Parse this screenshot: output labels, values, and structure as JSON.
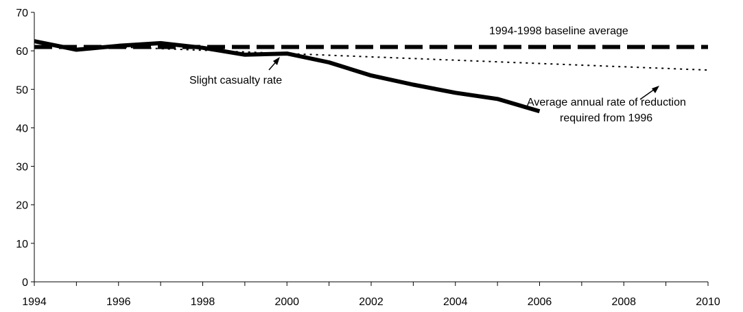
{
  "chart_data": {
    "type": "line",
    "title": "",
    "xlabel": "",
    "ylabel": "",
    "xlim": [
      1994,
      2010
    ],
    "ylim": [
      0,
      70
    ],
    "x_ticks": [
      "1994",
      "1996",
      "1998",
      "2000",
      "2002",
      "2004",
      "2006",
      "2008",
      "2010"
    ],
    "y_ticks": [
      "0",
      "10",
      "20",
      "30",
      "40",
      "50",
      "60",
      "70"
    ],
    "grid": false,
    "legend": "none",
    "series": [
      {
        "style": "solid-thick",
        "color": "#000000",
        "x": [
          1994,
          1995,
          1996,
          1997,
          1998,
          1999,
          2000,
          2001,
          2002,
          2003,
          2004,
          2005,
          2006
        ],
        "y": [
          62.5,
          60.3,
          61.3,
          62.0,
          60.8,
          59.0,
          59.3,
          57.0,
          53.6,
          51.2,
          49.1,
          47.5,
          44.3
        ]
      },
      {
        "style": "dashed-thick",
        "color": "#000000",
        "x": [
          1994,
          2010
        ],
        "y": [
          61.0,
          61.0
        ]
      },
      {
        "style": "dotted-thin",
        "color": "#000000",
        "x": [
          1996,
          2010
        ],
        "y": [
          61.0,
          55.0
        ]
      }
    ],
    "annotations": [
      {
        "text": "1994-1998 baseline average"
      },
      {
        "text": "Slight casualty  rate"
      },
      {
        "text": "Average annual rate of reduction"
      },
      {
        "text": "required from 1996"
      }
    ]
  }
}
